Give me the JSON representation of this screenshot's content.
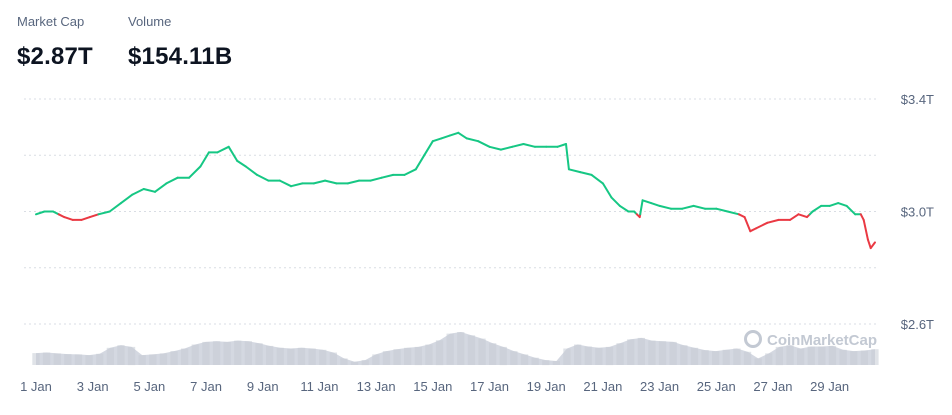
{
  "header": {
    "market_cap_label": "Market Cap",
    "market_cap_value": "$2.87T",
    "volume_label": "Volume",
    "volume_value": "$154.11B"
  },
  "watermark": "CoinMarketCap",
  "colors": {
    "up": "#16c784",
    "down": "#ea3943",
    "volume": "#d4d8e1",
    "grid": "#d9dde4",
    "axis_text": "#58667e"
  },
  "chart_data": {
    "type": "line",
    "title": "",
    "xlabel": "",
    "ylabel": "",
    "x_tick_labels": [
      "1 Jan",
      "3 Jan",
      "5 Jan",
      "7 Jan",
      "9 Jan",
      "11 Jan",
      "13 Jan",
      "15 Jan",
      "17 Jan",
      "19 Jan",
      "21 Jan",
      "23 Jan",
      "25 Jan",
      "27 Jan",
      "29 Jan"
    ],
    "y_tick_labels": [
      "$3.4T",
      "$3.0T",
      "$2.6T"
    ],
    "y_ticks": [
      3.4,
      3.0,
      2.6
    ],
    "ylim": [
      2.6,
      3.4
    ],
    "xlim": [
      0.0,
      29.6
    ],
    "grid": true,
    "baseline": 2.99,
    "series": [
      {
        "values": [
          [
            0.0,
            2.99
          ],
          [
            0.3,
            3.0
          ],
          [
            0.6,
            3.0
          ],
          [
            0.8,
            2.99
          ],
          [
            1.0,
            2.98
          ],
          [
            1.3,
            2.97
          ],
          [
            1.6,
            2.97
          ],
          [
            1.9,
            2.98
          ],
          [
            2.2,
            2.99
          ],
          [
            2.6,
            3.0
          ],
          [
            3.0,
            3.03
          ],
          [
            3.4,
            3.06
          ],
          [
            3.8,
            3.08
          ],
          [
            4.2,
            3.07
          ],
          [
            4.6,
            3.1
          ],
          [
            5.0,
            3.12
          ],
          [
            5.4,
            3.12
          ],
          [
            5.8,
            3.16
          ],
          [
            6.1,
            3.21
          ],
          [
            6.4,
            3.21
          ],
          [
            6.8,
            3.23
          ],
          [
            7.1,
            3.18
          ],
          [
            7.4,
            3.16
          ],
          [
            7.8,
            3.13
          ],
          [
            8.2,
            3.11
          ],
          [
            8.6,
            3.11
          ],
          [
            9.0,
            3.09
          ],
          [
            9.4,
            3.1
          ],
          [
            9.8,
            3.1
          ],
          [
            10.2,
            3.11
          ],
          [
            10.6,
            3.1
          ],
          [
            11.0,
            3.1
          ],
          [
            11.4,
            3.11
          ],
          [
            11.8,
            3.11
          ],
          [
            12.2,
            3.12
          ],
          [
            12.6,
            3.13
          ],
          [
            13.0,
            3.13
          ],
          [
            13.4,
            3.15
          ],
          [
            13.7,
            3.2
          ],
          [
            14.0,
            3.25
          ],
          [
            14.3,
            3.26
          ],
          [
            14.6,
            3.27
          ],
          [
            14.9,
            3.28
          ],
          [
            15.2,
            3.26
          ],
          [
            15.6,
            3.25
          ],
          [
            16.0,
            3.23
          ],
          [
            16.4,
            3.22
          ],
          [
            16.8,
            3.23
          ],
          [
            17.2,
            3.24
          ],
          [
            17.6,
            3.23
          ],
          [
            18.0,
            3.23
          ],
          [
            18.4,
            3.23
          ],
          [
            18.7,
            3.24
          ],
          [
            18.8,
            3.15
          ],
          [
            19.2,
            3.14
          ],
          [
            19.6,
            3.13
          ],
          [
            20.0,
            3.1
          ],
          [
            20.3,
            3.05
          ],
          [
            20.6,
            3.02
          ],
          [
            20.9,
            3.0
          ],
          [
            21.1,
            3.0
          ],
          [
            21.3,
            2.98
          ],
          [
            21.4,
            3.04
          ],
          [
            21.7,
            3.03
          ],
          [
            22.0,
            3.02
          ],
          [
            22.4,
            3.01
          ],
          [
            22.8,
            3.01
          ],
          [
            23.2,
            3.02
          ],
          [
            23.6,
            3.01
          ],
          [
            24.0,
            3.01
          ],
          [
            24.4,
            3.0
          ],
          [
            24.8,
            2.99
          ],
          [
            25.0,
            2.98
          ],
          [
            25.2,
            2.93
          ],
          [
            25.4,
            2.94
          ],
          [
            25.8,
            2.96
          ],
          [
            26.2,
            2.97
          ],
          [
            26.6,
            2.97
          ],
          [
            26.9,
            2.99
          ],
          [
            27.2,
            2.98
          ],
          [
            27.4,
            3.0
          ],
          [
            27.7,
            3.02
          ],
          [
            28.0,
            3.02
          ],
          [
            28.3,
            3.03
          ],
          [
            28.6,
            3.02
          ],
          [
            28.9,
            2.99
          ],
          [
            29.1,
            2.99
          ],
          [
            29.2,
            2.97
          ],
          [
            29.35,
            2.9
          ],
          [
            29.45,
            2.87
          ],
          [
            29.6,
            2.89
          ]
        ]
      }
    ],
    "volume": {
      "values": [
        0.36,
        0.38,
        0.35,
        0.33,
        0.32,
        0.3,
        0.34,
        0.52,
        0.6,
        0.55,
        0.3,
        0.32,
        0.35,
        0.42,
        0.5,
        0.62,
        0.7,
        0.72,
        0.7,
        0.74,
        0.72,
        0.66,
        0.58,
        0.52,
        0.5,
        0.52,
        0.5,
        0.46,
        0.38,
        0.2,
        0.1,
        0.15,
        0.32,
        0.42,
        0.48,
        0.52,
        0.55,
        0.62,
        0.75,
        0.95,
        1.0,
        0.9,
        0.8,
        0.66,
        0.55,
        0.42,
        0.32,
        0.22,
        0.15,
        0.12,
        0.5,
        0.62,
        0.56,
        0.52,
        0.55,
        0.66,
        0.78,
        0.82,
        0.74,
        0.72,
        0.7,
        0.6,
        0.52,
        0.45,
        0.42,
        0.46,
        0.5,
        0.4,
        0.2,
        0.35,
        0.55,
        0.6,
        0.5,
        0.56,
        0.56,
        0.58,
        0.46,
        0.42,
        0.44,
        0.48
      ]
    }
  }
}
